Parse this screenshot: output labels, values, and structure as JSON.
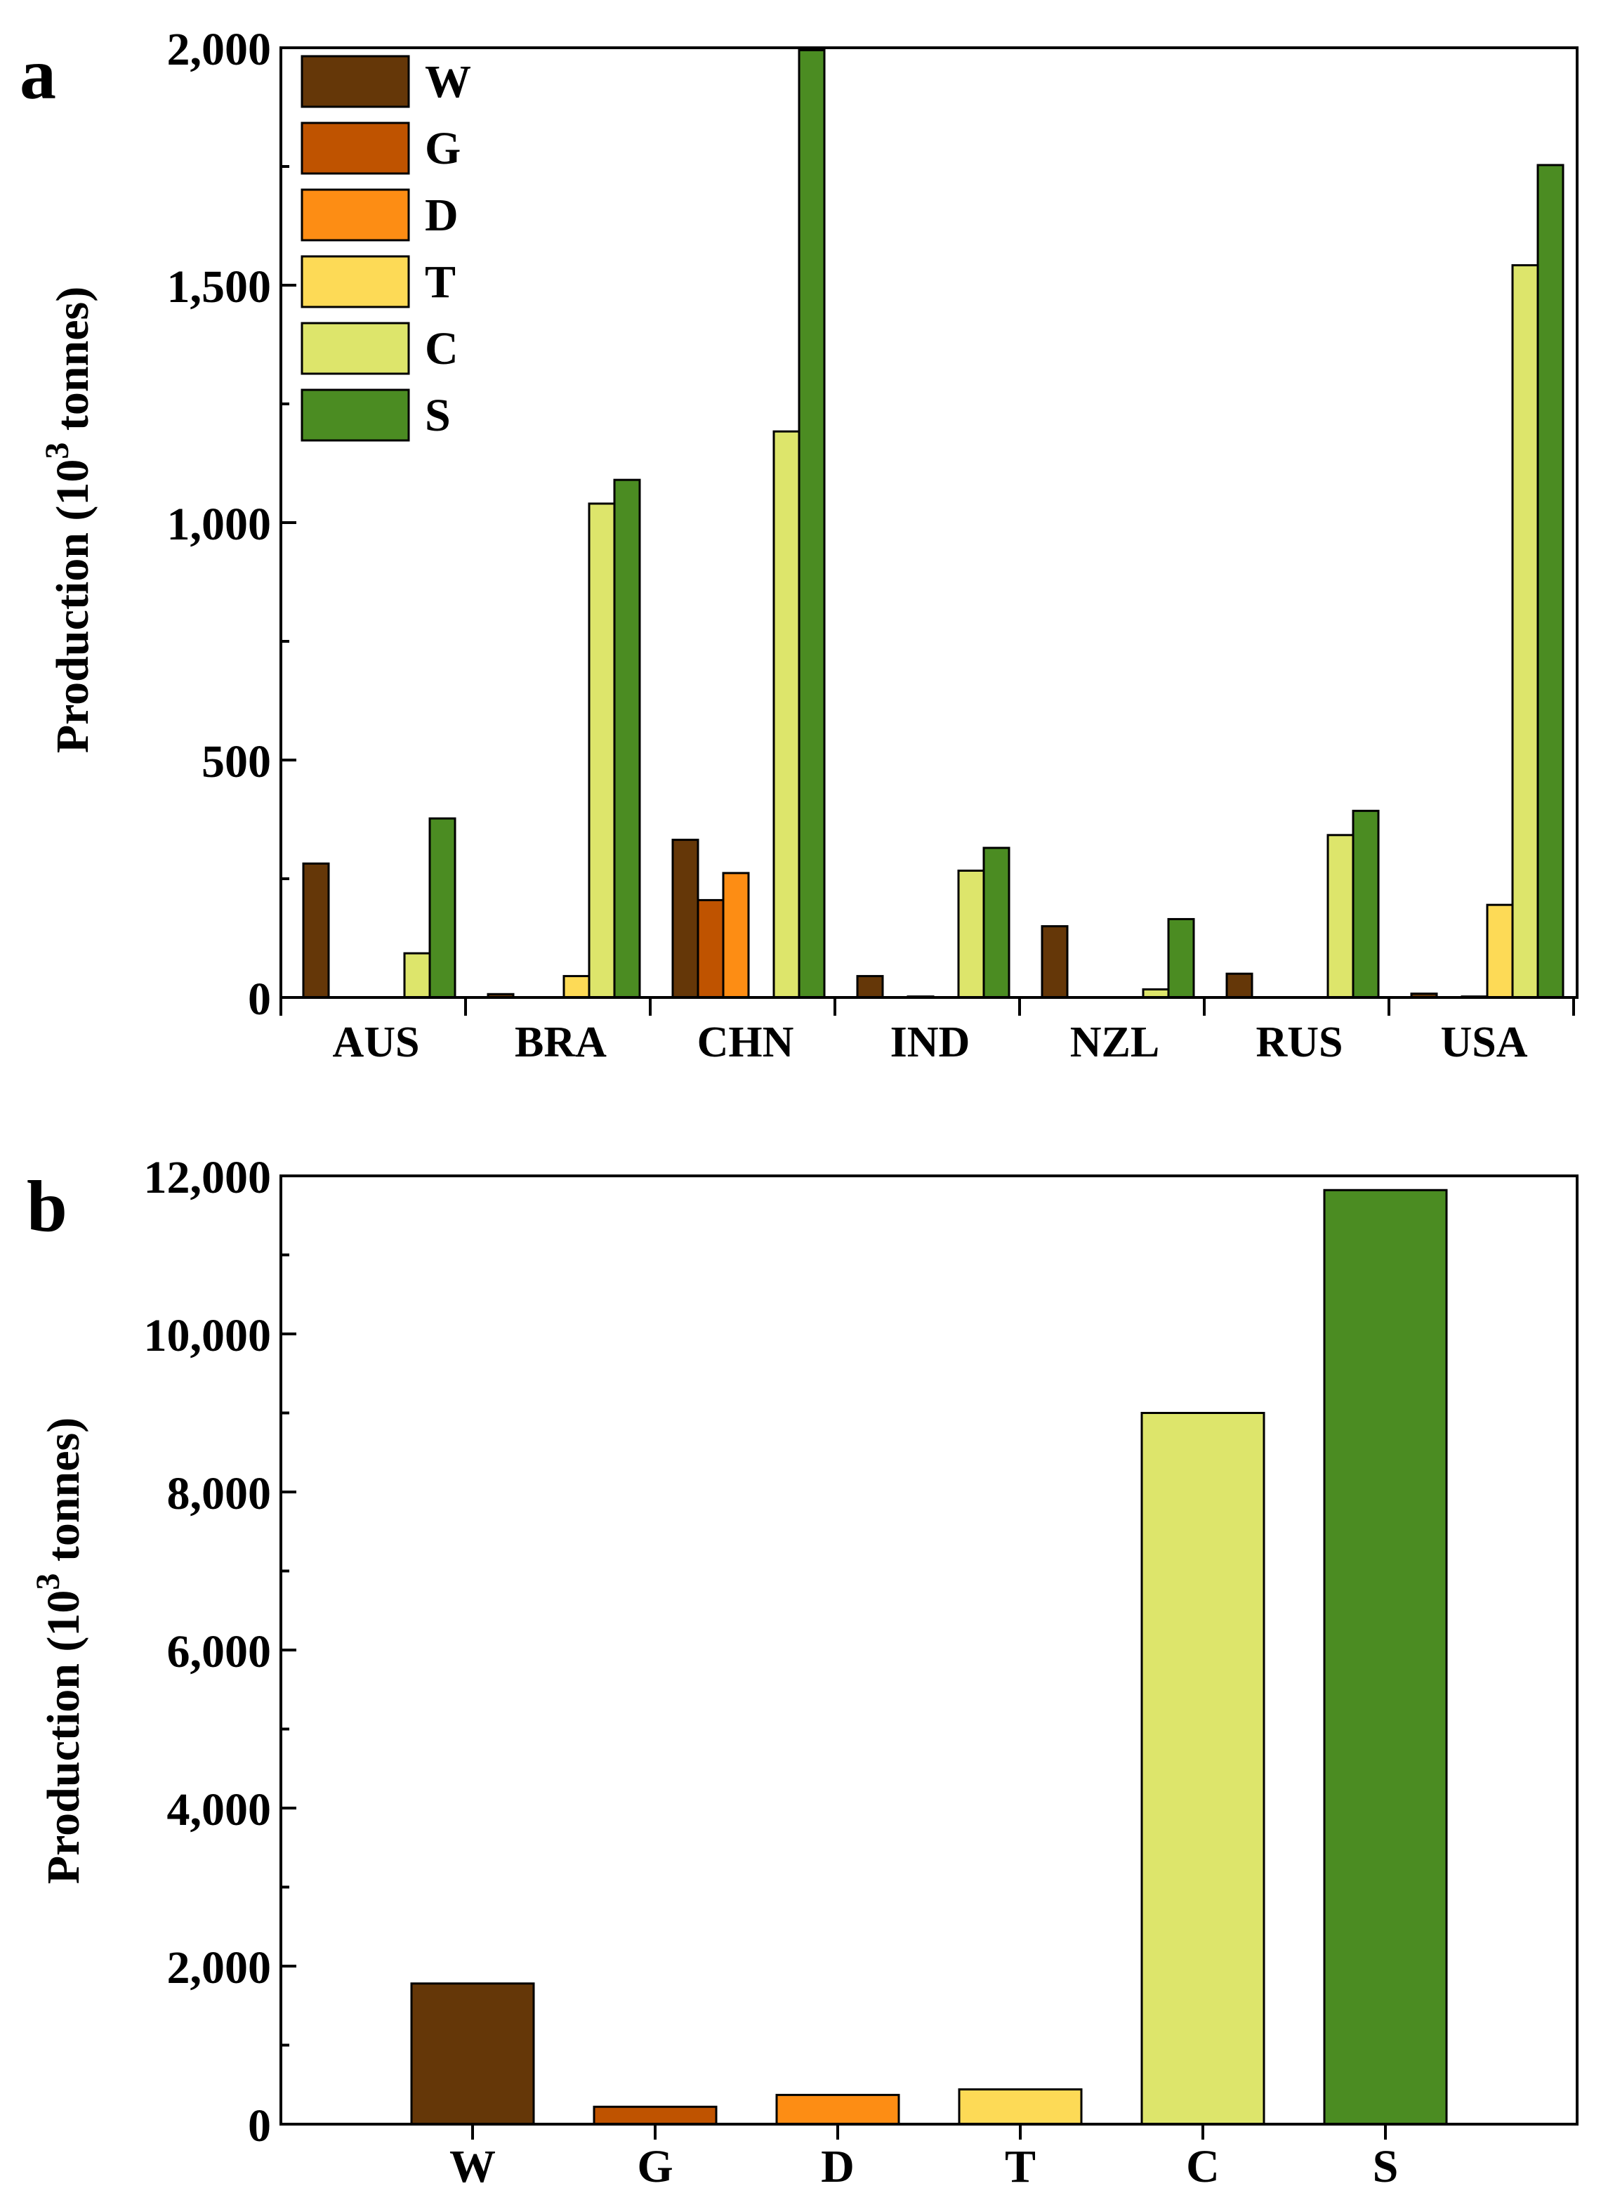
{
  "figure": {
    "background": "#ffffff"
  },
  "colors": {
    "W": "#653708",
    "G": "#bf5300",
    "D": "#fd8d14",
    "T": "#fdda56",
    "C": "#dde56b",
    "S": "#4b8c22"
  },
  "chart_data": [
    {
      "panel_label": "a",
      "type": "bar",
      "title": "",
      "xlabel": "",
      "ylabel": "Production (10",
      "ylabel_sup": "3",
      "ylabel_tail": " tonnes)",
      "categories": [
        "AUS",
        "BRA",
        "CHN",
        "IND",
        "NZL",
        "RUS",
        "USA"
      ],
      "ylim": [
        0,
        2000
      ],
      "yticks": [
        0,
        500,
        1000,
        1500,
        2000
      ],
      "ytick_labels": [
        "0",
        "500",
        "1,000",
        "1,500",
        "2,000"
      ],
      "legend_position": "top-left",
      "series": [
        {
          "name": "W",
          "color_key": "W",
          "values": [
            282,
            7,
            332,
            45,
            150,
            50,
            8
          ]
        },
        {
          "name": "G",
          "color_key": "G",
          "values": [
            0,
            0,
            205,
            0,
            0,
            0,
            0
          ]
        },
        {
          "name": "D",
          "color_key": "D",
          "values": [
            0,
            0,
            262,
            2,
            0,
            0,
            2
          ]
        },
        {
          "name": "T",
          "color_key": "T",
          "values": [
            0,
            45,
            0,
            0,
            0,
            0,
            195
          ]
        },
        {
          "name": "C",
          "color_key": "C",
          "values": [
            93,
            1040,
            1192,
            267,
            17,
            342,
            1542
          ]
        },
        {
          "name": "S",
          "color_key": "S",
          "values": [
            377,
            1090,
            1995,
            315,
            165,
            393,
            1753
          ]
        }
      ]
    },
    {
      "panel_label": "b",
      "type": "bar",
      "title": "",
      "xlabel": "",
      "ylabel": "Production (10",
      "ylabel_sup": "3",
      "ylabel_tail": " tonnes)",
      "categories": [
        "W",
        "G",
        "D",
        "T",
        "C",
        "S"
      ],
      "color_keys": [
        "W",
        "G",
        "D",
        "T",
        "C",
        "S"
      ],
      "values": [
        1780,
        220,
        370,
        440,
        9000,
        11820
      ],
      "ylim": [
        0,
        12000
      ],
      "yticks": [
        0,
        2000,
        4000,
        6000,
        8000,
        10000,
        12000
      ],
      "ytick_labels": [
        "0",
        "2,000",
        "4,000",
        "6,000",
        "8,000",
        "10,000",
        "12,000"
      ]
    }
  ]
}
